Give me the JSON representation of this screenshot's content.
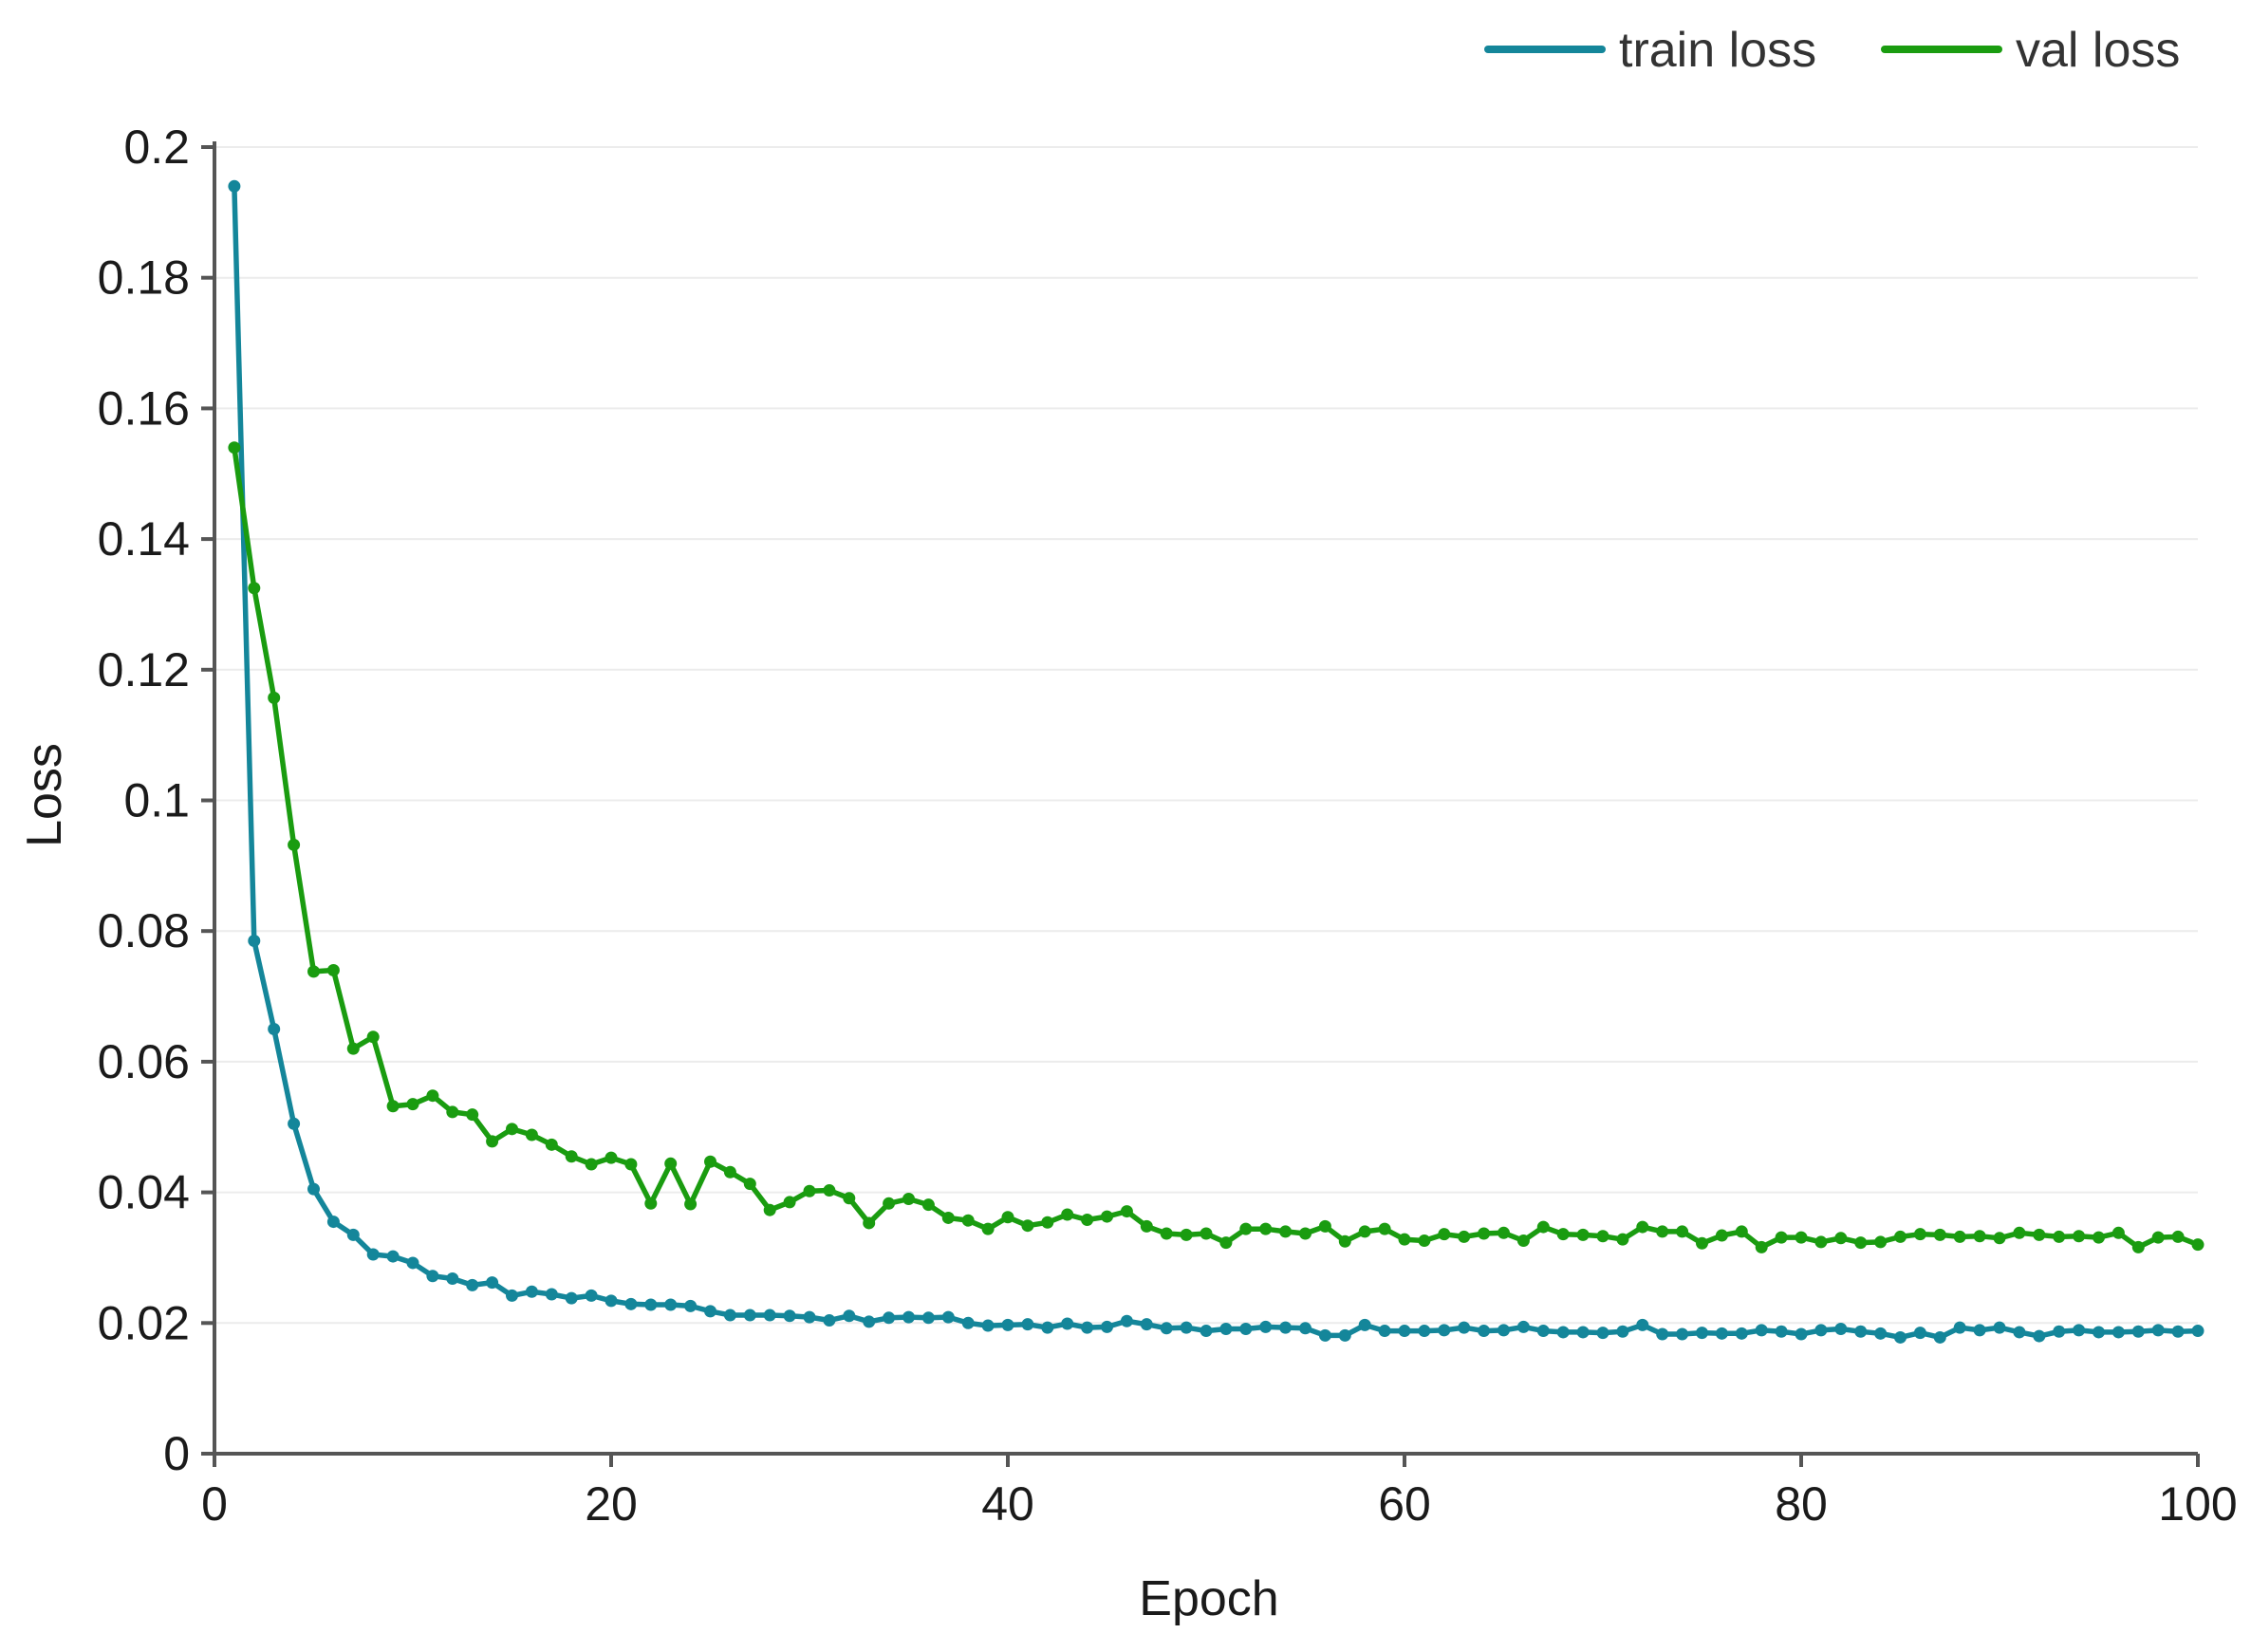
{
  "chart_data": {
    "type": "line",
    "title": "",
    "xlabel": "Epoch",
    "ylabel": "Loss",
    "xlim": [
      0,
      100
    ],
    "ylim": [
      0,
      0.2
    ],
    "x_ticks": [
      0,
      20,
      40,
      60,
      80,
      100
    ],
    "y_ticks": [
      0,
      0.02,
      0.04,
      0.06,
      0.08,
      0.1,
      0.12,
      0.14,
      0.16,
      0.18,
      0.2
    ],
    "y_tick_labels": [
      "0",
      "0.02",
      "0.04",
      "0.06",
      "0.08",
      "0.1",
      "0.12",
      "0.14",
      "0.16",
      "0.18",
      "0.2"
    ],
    "grid": "horizontal",
    "legend_position": "top-right",
    "series": [
      {
        "name": "train loss",
        "color": "#14869a",
        "x": [
          1,
          2,
          3,
          4,
          5,
          6,
          7,
          8,
          9,
          10,
          11,
          12,
          13,
          14,
          15,
          16,
          17,
          18,
          19,
          20,
          21,
          22,
          23,
          24,
          25,
          26,
          27,
          28,
          29,
          30,
          31,
          32,
          33,
          34,
          35,
          36,
          37,
          38,
          39,
          40,
          41,
          42,
          43,
          44,
          45,
          46,
          47,
          48,
          49,
          50,
          51,
          52,
          53,
          54,
          55,
          56,
          57,
          58,
          59,
          60,
          61,
          62,
          63,
          64,
          65,
          66,
          67,
          68,
          69,
          70,
          71,
          72,
          73,
          74,
          75,
          76,
          77,
          78,
          79,
          80,
          81,
          82,
          83,
          84,
          85,
          86,
          87,
          88,
          89,
          90,
          91,
          92,
          93,
          94,
          95,
          96,
          97,
          98,
          99,
          100
        ],
        "values": [
          0.194,
          0.0785,
          0.065,
          0.0505,
          0.0405,
          0.0355,
          0.0335,
          0.0305,
          0.0302,
          0.0292,
          0.0272,
          0.0268,
          0.0258,
          0.0262,
          0.0242,
          0.0248,
          0.0244,
          0.0238,
          0.0242,
          0.0234,
          0.0229,
          0.0228,
          0.0228,
          0.0226,
          0.0218,
          0.0212,
          0.0212,
          0.0212,
          0.0211,
          0.0209,
          0.0204,
          0.0211,
          0.0202,
          0.0208,
          0.0209,
          0.0208,
          0.0209,
          0.02,
          0.0196,
          0.0197,
          0.0198,
          0.0193,
          0.0199,
          0.0193,
          0.0194,
          0.0203,
          0.0198,
          0.0192,
          0.0193,
          0.0188,
          0.0191,
          0.0191,
          0.0194,
          0.0193,
          0.0192,
          0.0181,
          0.0181,
          0.0197,
          0.0188,
          0.0188,
          0.0188,
          0.0189,
          0.0193,
          0.0188,
          0.0189,
          0.0194,
          0.0188,
          0.0186,
          0.0186,
          0.0185,
          0.0187,
          0.0197,
          0.0183,
          0.0183,
          0.0185,
          0.0184,
          0.0184,
          0.0189,
          0.0187,
          0.0183,
          0.0189,
          0.0191,
          0.0187,
          0.0184,
          0.0178,
          0.0185,
          0.0178,
          0.0193,
          0.0189,
          0.0193,
          0.0186,
          0.018,
          0.0187,
          0.0189,
          0.0186,
          0.0186,
          0.0187,
          0.0189,
          0.0187,
          0.0188
        ]
      },
      {
        "name": "val loss",
        "color": "#1a9c10",
        "x": [
          1,
          2,
          3,
          4,
          5,
          6,
          7,
          8,
          9,
          10,
          11,
          12,
          13,
          14,
          15,
          16,
          17,
          18,
          19,
          20,
          21,
          22,
          23,
          24,
          25,
          26,
          27,
          28,
          29,
          30,
          31,
          32,
          33,
          34,
          35,
          36,
          37,
          38,
          39,
          40,
          41,
          42,
          43,
          44,
          45,
          46,
          47,
          48,
          49,
          50,
          51,
          52,
          53,
          54,
          55,
          56,
          57,
          58,
          59,
          60,
          61,
          62,
          63,
          64,
          65,
          66,
          67,
          68,
          69,
          70,
          71,
          72,
          73,
          74,
          75,
          76,
          77,
          78,
          79,
          80,
          81,
          82,
          83,
          84,
          85,
          86,
          87,
          88,
          89,
          90,
          91,
          92,
          93,
          94,
          95,
          96,
          97,
          98,
          99,
          100
        ],
        "values": [
          0.154,
          0.1325,
          0.1157,
          0.0932,
          0.0738,
          0.074,
          0.062,
          0.0638,
          0.0532,
          0.0535,
          0.0548,
          0.0523,
          0.0519,
          0.0478,
          0.0497,
          0.0488,
          0.0473,
          0.0455,
          0.0443,
          0.0453,
          0.0443,
          0.0383,
          0.0444,
          0.0382,
          0.0447,
          0.0431,
          0.0413,
          0.0373,
          0.0385,
          0.0402,
          0.0403,
          0.0391,
          0.0353,
          0.0383,
          0.039,
          0.0381,
          0.0361,
          0.0357,
          0.0344,
          0.0362,
          0.0349,
          0.0354,
          0.0366,
          0.0358,
          0.0363,
          0.0371,
          0.0348,
          0.0337,
          0.0335,
          0.0337,
          0.0323,
          0.0344,
          0.0344,
          0.034,
          0.0337,
          0.0348,
          0.0325,
          0.034,
          0.0344,
          0.0328,
          0.0326,
          0.0336,
          0.0332,
          0.0337,
          0.0338,
          0.0326,
          0.0347,
          0.0336,
          0.0335,
          0.0333,
          0.0328,
          0.0347,
          0.034,
          0.034,
          0.0322,
          0.0334,
          0.034,
          0.0316,
          0.0331,
          0.0331,
          0.0324,
          0.033,
          0.0323,
          0.0324,
          0.0332,
          0.0336,
          0.0335,
          0.0332,
          0.0333,
          0.033,
          0.0338,
          0.0335,
          0.0332,
          0.0333,
          0.0331,
          0.0338,
          0.0316,
          0.0331,
          0.0332,
          0.032
        ]
      }
    ]
  }
}
